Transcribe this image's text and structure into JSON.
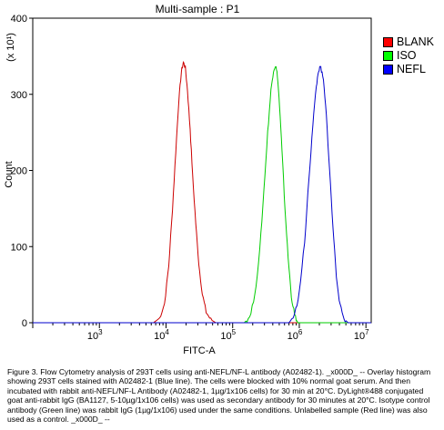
{
  "chart_data": {
    "type": "line",
    "title": "Multi-sample : P1",
    "xlabel": "FITC-A",
    "ylabel": "Count",
    "y_multiplier_label": "(x 10¹)",
    "x_scale": "log",
    "xlim": [
      100,
      12000000
    ],
    "ylim": [
      0,
      400
    ],
    "x_ticks": [
      {
        "value": 1000,
        "base": "10",
        "exp": "3"
      },
      {
        "value": 10000,
        "base": "10",
        "exp": "4"
      },
      {
        "value": 100000,
        "base": "10",
        "exp": "5"
      },
      {
        "value": 1000000,
        "base": "10",
        "exp": "6"
      },
      {
        "value": 10000000,
        "base": "10",
        "exp": "7"
      }
    ],
    "y_ticks": [
      0,
      100,
      200,
      300,
      400
    ],
    "grid": false,
    "legend_position": "right",
    "series": [
      {
        "name": "BLANK",
        "color": "#cc0000",
        "x": [
          6500,
          8000,
          9500,
          11000,
          12500,
          14000,
          15500,
          17000,
          18200,
          19500,
          21000,
          23000,
          25000,
          28000,
          31000,
          35000,
          40000,
          47000,
          56000
        ],
        "y": [
          0,
          6,
          25,
          75,
          150,
          225,
          290,
          330,
          342,
          335,
          305,
          255,
          195,
          130,
          78,
          38,
          14,
          4,
          0
        ]
      },
      {
        "name": "ISO",
        "color": "#00cc00",
        "x": [
          150000,
          180000,
          215000,
          255000,
          295000,
          335000,
          375000,
          410000,
          440000,
          470000,
          505000,
          550000,
          610000,
          680000,
          760000,
          850000,
          950000
        ],
        "y": [
          0,
          8,
          35,
          95,
          175,
          250,
          305,
          332,
          338,
          325,
          285,
          225,
          150,
          85,
          35,
          10,
          0
        ]
      },
      {
        "name": "NEFL",
        "color": "#0000cc",
        "x": [
          700000,
          850000,
          1000000,
          1200000,
          1400000,
          1600000,
          1800000,
          1950000,
          2100000,
          2300000,
          2550000,
          2850000,
          3200000,
          3600000,
          4100000,
          4700000,
          5400000
        ],
        "y": [
          0,
          10,
          40,
          105,
          190,
          262,
          310,
          332,
          335,
          318,
          272,
          200,
          125,
          62,
          22,
          5,
          0
        ]
      }
    ]
  },
  "caption": "Figure 3. Flow Cytometry analysis of 293T cells using anti-NEFL/NF-L antibody (A02482-1). _x000D_ -- Overlay histogram showing 293T cells stained with A02482-1 (Blue line). The cells were blocked with 10% normal goat serum. And then incubated with rabbit anti-NEFL/NF-L Antibody (A02482-1, 1µg/1x106 cells) for 30 min at 20°C. DyLight®488 conjugated goat anti-rabbit IgG (BA1127, 5-10µg/1x106 cells) was used as secondary antibody for 30 minutes at 20°C. Isotype control antibody (Green line) was rabbit IgG (1µg/1x106) used under the same conditions. Unlabelled sample (Red line) was also used as a control. _x000D_ --"
}
